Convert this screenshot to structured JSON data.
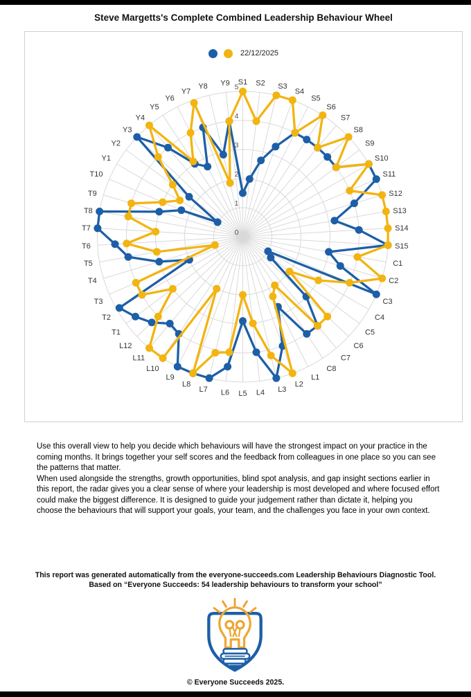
{
  "page": {
    "title": "Steve Margetts's Complete Combined Leadership Behaviour Wheel"
  },
  "chart": {
    "legend_date": "22/12/2025",
    "colors": {
      "blue": "#1d5fa7",
      "yellow": "#f2b411",
      "grid": "#d9d9d9",
      "axis_label": "#333333",
      "ring_label": "#555555"
    },
    "chart_data": {
      "type": "radar",
      "title": "Steve Margetts's Complete Combined Leadership Behaviour Wheel",
      "legend": {
        "label": "22/12/2025",
        "position": "top"
      },
      "rmax": 5,
      "rings": [
        0,
        1,
        2,
        3,
        4,
        5
      ],
      "grid": true,
      "categories": [
        "S1",
        "S2",
        "S3",
        "S4",
        "S5",
        "S6",
        "S7",
        "S8",
        "S9",
        "S10",
        "S11",
        "S12",
        "S13",
        "S14",
        "S15",
        "C1",
        "C2",
        "C3",
        "C4",
        "C5",
        "C6",
        "C7",
        "C8",
        "L1",
        "L2",
        "L3",
        "L4",
        "L5",
        "L6",
        "L7",
        "L8",
        "L9",
        "L10",
        "L11",
        "L12",
        "T1",
        "T2",
        "T3",
        "T4",
        "T5",
        "T6",
        "T7",
        "T8",
        "T9",
        "T10",
        "Y1",
        "Y2",
        "Y3",
        "Y4",
        "Y5",
        "Y6",
        "Y7",
        "Y8",
        "Y9"
      ],
      "series": [
        {
          "name": "series-blue",
          "date": "22/12/2025",
          "values": [
            1.5,
            2,
            2.7,
            3.3,
            4,
            4,
            4,
            4,
            4,
            5,
            5,
            4,
            3.2,
            4,
            5,
            3,
            3.5,
            5,
            1,
            1.2,
            3,
            4,
            4,
            2.7,
            4,
            5,
            4,
            2.9,
            4.5,
            5,
            5,
            5,
            4,
            3.9,
            4.3,
            4.6,
            4.9,
            2,
            3,
            4,
            4.4,
            5,
            5,
            3,
            2.3,
            1,
            2.3,
            5,
            4,
            3,
            2.7,
            4,
            2.9,
            4
          ]
        },
        {
          "name": "series-yellow",
          "date": "22/12/2025",
          "values": [
            5,
            4,
            5,
            5,
            4,
            5,
            4,
            5,
            4,
            5,
            4,
            5,
            5,
            5,
            5,
            4,
            5,
            4,
            3,
            2,
            4,
            4,
            2,
            2.3,
            5,
            4.2,
            3,
            2,
            4,
            4.1,
            5,
            2,
            5,
            5,
            4,
            3,
            4,
            4,
            1,
            3,
            4,
            3,
            4,
            4,
            3,
            2.5,
            3,
            4,
            5,
            3.1,
            4,
            4.9,
            1.9,
            4
          ]
        }
      ]
    }
  },
  "body_text": {
    "p1": "Use this overall view to help you decide which behaviours will have the strongest impact on your practice in the coming months. It brings together your self scores and the feedback from colleagues in one place so you can see the patterns that matter.",
    "p2": "When used alongside the strengths, growth opportunities, blind spot analysis, and gap insight sections earlier in this report, the radar gives you a clear sense of where your leadership is most developed and where focused effort could make the biggest difference. It is designed to guide your judgement rather than dictate it, helping you choose the behaviours that will support your goals, your team, and the challenges you face in your own context."
  },
  "footer": {
    "line1": "This report was generated automatically from the everyone-succeeds.com Leadership Behaviours Diagnostic Tool.",
    "line2": "Based on “Everyone Succeeds: 54 leadership behaviours to transform your school”",
    "copyright": "© Everyone Succeeds 2025."
  }
}
